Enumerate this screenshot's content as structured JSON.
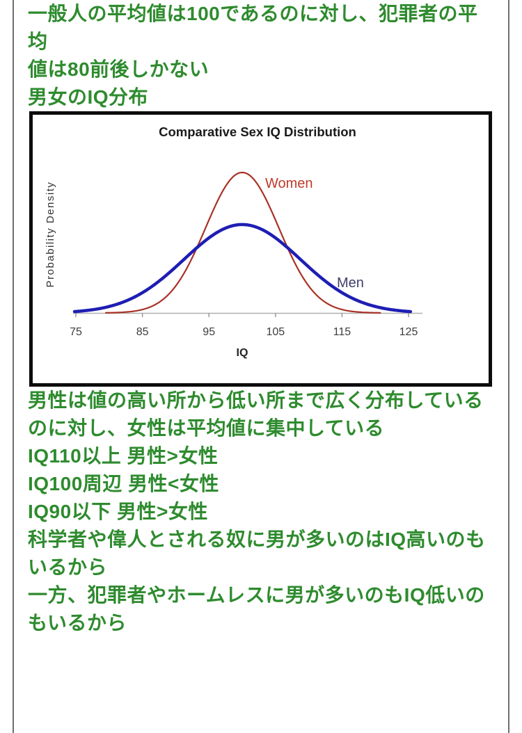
{
  "colors": {
    "text_green": "#2e8b2e",
    "quote_border": "#6e6e6e",
    "chart_border": "#0c0c0c",
    "chart_title": "#1a1a1a",
    "axis_line": "#b0b0b0",
    "tick_mark": "#999999",
    "tick_label": "#3d3d3d",
    "xlabel_color": "#222222",
    "ylabel_color": "#333333"
  },
  "paragraphs": {
    "intro": "一般人の平均値は100であるのに対し、犯罪者の平均\n値は80前後しかない",
    "chart_heading": "男女のIQ分布",
    "analysis": "男性は値の高い所から低い所まで広く分布している\nのに対し、女性は平均値に集中している",
    "comparison": "IQ110以上 男性>女性\nIQ100周辺 男性<女性\nIQ90以下 男性>女性",
    "conclusion": "科学者や偉人とされる奴に男が多いのはIQ高いのも\nいるから\n一方、犯罪者やホームレスに男が多いのもIQ低いの\nもいるから"
  },
  "chart_data": {
    "type": "line",
    "title": "Comparative Sex IQ Distribution",
    "xlabel": "IQ",
    "ylabel": "Probability Density",
    "x_ticks": [
      75,
      85,
      95,
      105,
      115,
      125
    ],
    "xlim": [
      74,
      127
    ],
    "y_axis_labeled": false,
    "grid": false,
    "legend_position": "labels-on-curves",
    "description": "Two normal IQ distributions with equal area, mean 100; Women narrow and tall, Men wide and flat",
    "series": [
      {
        "name": "Women",
        "mean": 100,
        "sd": 5.5,
        "x_range": [
          79.5,
          120.8
        ],
        "color": "#a93226",
        "label_color": "#c0392b",
        "stroke_width": 2.2
      },
      {
        "name": "Men",
        "mean": 100,
        "sd": 8.74,
        "x_range": [
          74.8,
          125.3
        ],
        "color": "#1e1eb4",
        "label_color": "#40406e",
        "stroke_width": 4.5
      }
    ]
  }
}
